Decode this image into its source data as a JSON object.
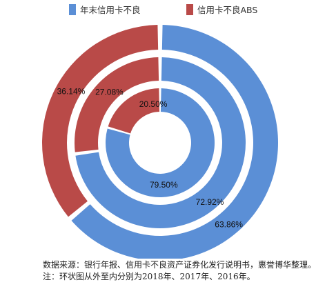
{
  "legend": [
    {
      "label": "年末信用卡不良",
      "color": "#5B8FD6"
    },
    {
      "label": "信用卡不良ABS",
      "color": "#B94A48"
    }
  ],
  "chart_data": {
    "type": "pie",
    "subtype": "nested-donut",
    "series": [
      {
        "name": "2018年",
        "values": [
          63.86,
          36.14
        ],
        "labels": [
          "63.86%",
          "36.14%"
        ]
      },
      {
        "name": "2017年",
        "values": [
          72.92,
          27.08
        ],
        "labels": [
          "72.92%",
          "27.08%"
        ]
      },
      {
        "name": "2016年",
        "values": [
          79.5,
          20.5
        ],
        "labels": [
          "79.50%",
          "20.50%"
        ]
      }
    ],
    "categories": [
      "年末信用卡不良",
      "信用卡不良ABS"
    ],
    "colors": [
      "#5B8FD6",
      "#B94A48"
    ]
  },
  "notes": {
    "source": "数据来源：银行年报、信用卡不良资产证券化发行说明书，惠誉博华整理。",
    "note": "注：环状图从外至内分别为2018年、2017年、2016年。"
  }
}
